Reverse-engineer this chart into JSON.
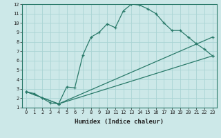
{
  "xlabel": "Humidex (Indice chaleur)",
  "bg_color": "#cce8e8",
  "grid_color": "#aad4d4",
  "line_color": "#2a7a6a",
  "xlim": [
    -0.5,
    23.5
  ],
  "ylim": [
    1,
    12
  ],
  "xticks": [
    0,
    1,
    2,
    3,
    4,
    5,
    6,
    7,
    8,
    9,
    10,
    11,
    12,
    13,
    14,
    15,
    16,
    17,
    18,
    19,
    20,
    21,
    22,
    23
  ],
  "yticks": [
    1,
    2,
    3,
    4,
    5,
    6,
    7,
    8,
    9,
    10,
    11,
    12
  ],
  "line1_x": [
    0,
    1,
    2,
    3,
    4,
    5,
    6,
    7,
    8,
    9,
    10,
    11,
    12,
    13,
    14,
    15,
    16,
    17,
    18,
    19,
    20,
    21,
    22,
    23
  ],
  "line1_y": [
    2.7,
    2.5,
    2.0,
    1.5,
    1.4,
    3.2,
    3.1,
    6.6,
    8.5,
    9.0,
    9.9,
    9.5,
    11.3,
    12.0,
    11.9,
    11.5,
    11.0,
    10.0,
    9.2,
    9.2,
    8.5,
    7.8,
    7.2,
    6.5
  ],
  "line2_x": [
    0,
    4,
    23
  ],
  "line2_y": [
    2.7,
    1.4,
    6.5
  ],
  "line3_x": [
    0,
    4,
    23
  ],
  "line3_y": [
    2.7,
    1.4,
    8.5
  ],
  "marker_size": 3.5,
  "tick_fontsize": 5,
  "xlabel_fontsize": 6.5
}
